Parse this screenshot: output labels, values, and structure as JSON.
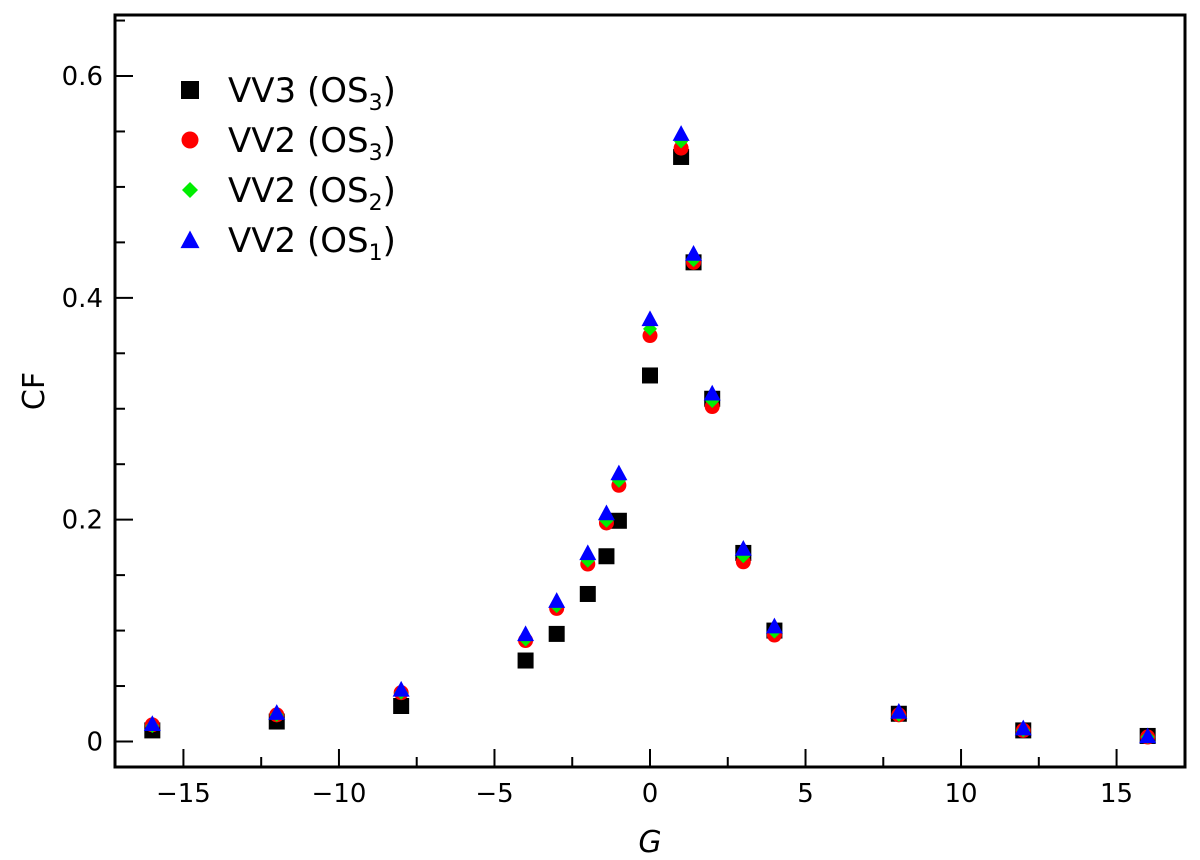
{
  "chart_data": {
    "type": "scatter",
    "title": "",
    "xlabel": "G",
    "ylabel": "CF",
    "xlim": [
      -17.2,
      17.2
    ],
    "ylim": [
      -0.023,
      0.655
    ],
    "x_ticks": [
      -15,
      -10,
      -5,
      0,
      5,
      10,
      15
    ],
    "x_tick_labels": [
      "−15",
      "−10",
      "−5",
      "0",
      "5",
      "10",
      "15"
    ],
    "y_ticks": [
      0,
      0.2,
      0.4,
      0.6
    ],
    "y_tick_labels": [
      "0",
      "0.2",
      "0.4",
      "0.6"
    ],
    "grid": false,
    "legend_position": "top-left",
    "series": [
      {
        "label_main": "VV3 (OS",
        "label_sub": "3",
        "label_end": ")",
        "marker": "square",
        "color": "#000000",
        "points": [
          [
            -16,
            0.01
          ],
          [
            -12,
            0.018
          ],
          [
            -8,
            0.032
          ],
          [
            -4,
            0.073
          ],
          [
            -3,
            0.097
          ],
          [
            -2,
            0.133
          ],
          [
            -1.4,
            0.167
          ],
          [
            -1,
            0.199
          ],
          [
            0,
            0.33
          ],
          [
            1,
            0.527
          ],
          [
            1.4,
            0.432
          ],
          [
            2,
            0.309
          ],
          [
            3,
            0.17
          ],
          [
            4,
            0.1
          ],
          [
            8,
            0.025
          ],
          [
            12,
            0.01
          ],
          [
            16,
            0.005
          ]
        ]
      },
      {
        "label_main": "VV2 (OS",
        "label_sub": "3",
        "label_end": ")",
        "marker": "circle",
        "color": "#ff0000",
        "points": [
          [
            -16,
            0.015
          ],
          [
            -12,
            0.024
          ],
          [
            -8,
            0.044
          ],
          [
            -4,
            0.091
          ],
          [
            -3,
            0.12
          ],
          [
            -2,
            0.16
          ],
          [
            -1.4,
            0.197
          ],
          [
            -1,
            0.231
          ],
          [
            0,
            0.366
          ],
          [
            1,
            0.535
          ],
          [
            1.4,
            0.432
          ],
          [
            2,
            0.302
          ],
          [
            3,
            0.162
          ],
          [
            4,
            0.096
          ],
          [
            8,
            0.024
          ],
          [
            12,
            0.01
          ],
          [
            16,
            0.004
          ]
        ]
      },
      {
        "label_main": "VV2 (OS",
        "label_sub": "2",
        "label_end": ")",
        "marker": "diamond",
        "color": "#00ee00",
        "points": [
          [
            -16,
            0.014
          ],
          [
            -12,
            0.024
          ],
          [
            -8,
            0.044
          ],
          [
            -4,
            0.092
          ],
          [
            -3,
            0.122
          ],
          [
            -2,
            0.163
          ],
          [
            -1.4,
            0.199
          ],
          [
            -1,
            0.235
          ],
          [
            0,
            0.372
          ],
          [
            1,
            0.541
          ],
          [
            1.4,
            0.434
          ],
          [
            2,
            0.307
          ],
          [
            3,
            0.167
          ],
          [
            4,
            0.099
          ],
          [
            8,
            0.024
          ],
          [
            12,
            0.01
          ],
          [
            16,
            0.004
          ]
        ]
      },
      {
        "label_main": "VV2 (OS",
        "label_sub": "1",
        "label_end": ")",
        "marker": "triangle",
        "color": "#0000ff",
        "points": [
          [
            -16,
            0.016
          ],
          [
            -12,
            0.026
          ],
          [
            -8,
            0.047
          ],
          [
            -4,
            0.097
          ],
          [
            -3,
            0.127
          ],
          [
            -2,
            0.17
          ],
          [
            -1.4,
            0.206
          ],
          [
            -1,
            0.242
          ],
          [
            0,
            0.381
          ],
          [
            1,
            0.548
          ],
          [
            1.4,
            0.44
          ],
          [
            2,
            0.314
          ],
          [
            3,
            0.174
          ],
          [
            4,
            0.104
          ],
          [
            8,
            0.027
          ],
          [
            12,
            0.012
          ],
          [
            16,
            0.005
          ]
        ]
      }
    ]
  }
}
